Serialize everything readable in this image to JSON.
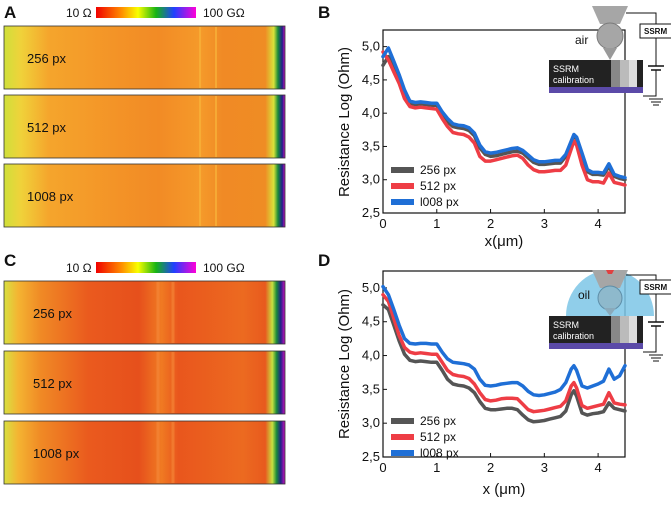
{
  "panels": {
    "A": {
      "label": "A",
      "colorbar": {
        "min_label": "10 Ω",
        "max_label": "100 GΩ"
      },
      "images": [
        {
          "label": "256 px"
        },
        {
          "label": "512 px"
        },
        {
          "label": "1008 px"
        }
      ]
    },
    "C": {
      "label": "C",
      "colorbar": {
        "min_label": "10 Ω",
        "max_label": "100 GΩ"
      },
      "images": [
        {
          "label": "256 px"
        },
        {
          "label": "512 px"
        },
        {
          "label": "1008 px"
        }
      ]
    }
  },
  "colors": {
    "s256": "#555555",
    "s512": "#ee3d45",
    "s1008": "#1f6fd6",
    "substrate": "#5b4aa8"
  },
  "chart_data": [
    {
      "panel": "B",
      "type": "line",
      "xlabel": "x(μm)",
      "ylabel": "Resistance Log (Ohm)",
      "xlim": [
        0,
        4.5
      ],
      "ylim": [
        2.5,
        5.25
      ],
      "xticks": [
        "0",
        "1",
        "2",
        "3",
        "4"
      ],
      "yticks": [
        "2,5",
        "3,0",
        "3,5",
        "4,0",
        "4,5",
        "5,0"
      ],
      "legend_position": "bottom-left",
      "inset": {
        "medium": "air",
        "ssrm_label": "SSRM",
        "calibration_label": [
          "SSRM",
          "calibration"
        ]
      },
      "x": [
        0,
        0.1,
        0.2,
        0.3,
        0.4,
        0.5,
        0.6,
        0.7,
        0.8,
        0.9,
        1.0,
        1.1,
        1.2,
        1.3,
        1.4,
        1.5,
        1.6,
        1.7,
        1.8,
        1.9,
        2.0,
        2.1,
        2.2,
        2.3,
        2.4,
        2.5,
        2.6,
        2.7,
        2.8,
        2.9,
        3.0,
        3.1,
        3.2,
        3.3,
        3.4,
        3.5,
        3.55,
        3.6,
        3.7,
        3.8,
        3.9,
        4.0,
        4.1,
        4.2,
        4.3,
        4.4,
        4.5
      ],
      "series": [
        {
          "name": "256 px",
          "color": "#555555",
          "values": [
            4.72,
            4.85,
            4.72,
            4.55,
            4.3,
            4.15,
            4.13,
            4.14,
            4.13,
            4.12,
            4.12,
            3.98,
            3.87,
            3.8,
            3.78,
            3.77,
            3.74,
            3.66,
            3.48,
            3.38,
            3.35,
            3.36,
            3.38,
            3.4,
            3.42,
            3.43,
            3.4,
            3.33,
            3.26,
            3.23,
            3.23,
            3.24,
            3.25,
            3.25,
            3.35,
            3.55,
            3.65,
            3.62,
            3.38,
            3.12,
            3.08,
            3.08,
            3.07,
            3.2,
            3.05,
            3.02,
            3.0
          ]
        },
        {
          "name": "512 px",
          "color": "#ee3d45",
          "values": [
            4.92,
            4.8,
            4.62,
            4.45,
            4.22,
            4.1,
            4.08,
            4.09,
            4.08,
            4.07,
            4.06,
            3.92,
            3.8,
            3.71,
            3.69,
            3.68,
            3.64,
            3.55,
            3.35,
            3.28,
            3.28,
            3.3,
            3.32,
            3.34,
            3.36,
            3.37,
            3.32,
            3.22,
            3.15,
            3.12,
            3.12,
            3.13,
            3.14,
            3.14,
            3.22,
            3.46,
            3.58,
            3.52,
            3.22,
            3.0,
            2.97,
            2.97,
            2.95,
            3.1,
            2.96,
            2.94,
            2.92
          ]
        },
        {
          "name": "l008 px",
          "color": "#1f6fd6",
          "values": [
            4.85,
            4.98,
            4.78,
            4.58,
            4.35,
            4.18,
            4.16,
            4.17,
            4.16,
            4.15,
            4.15,
            4.02,
            3.92,
            3.84,
            3.82,
            3.81,
            3.78,
            3.7,
            3.52,
            3.42,
            3.4,
            3.41,
            3.43,
            3.45,
            3.47,
            3.48,
            3.44,
            3.37,
            3.3,
            3.27,
            3.27,
            3.28,
            3.29,
            3.29,
            3.38,
            3.58,
            3.68,
            3.64,
            3.4,
            3.15,
            3.11,
            3.11,
            3.1,
            3.24,
            3.08,
            3.05,
            3.03
          ]
        }
      ]
    },
    {
      "panel": "D",
      "type": "line",
      "xlabel": "x (μm)",
      "ylabel": "Resistance Log (Ohm)",
      "xlim": [
        0,
        4.5
      ],
      "ylim": [
        2.5,
        5.25
      ],
      "xticks": [
        "0",
        "1",
        "2",
        "3",
        "4"
      ],
      "yticks": [
        "2,5",
        "3,0",
        "3,5",
        "4,0",
        "4,5",
        "5,0"
      ],
      "legend_position": "bottom-left",
      "inset": {
        "medium": "oil",
        "ssrm_label": "SSRM",
        "calibration_label": [
          "SSRM",
          "calibration"
        ]
      },
      "x": [
        0,
        0.1,
        0.2,
        0.3,
        0.4,
        0.5,
        0.6,
        0.7,
        0.8,
        0.9,
        1.0,
        1.1,
        1.2,
        1.3,
        1.4,
        1.5,
        1.6,
        1.7,
        1.8,
        1.9,
        2.0,
        2.1,
        2.2,
        2.3,
        2.4,
        2.5,
        2.6,
        2.7,
        2.8,
        2.9,
        3.0,
        3.1,
        3.2,
        3.3,
        3.4,
        3.5,
        3.55,
        3.6,
        3.7,
        3.8,
        3.9,
        4.0,
        4.1,
        4.2,
        4.3,
        4.4,
        4.5
      ],
      "series": [
        {
          "name": "256 px",
          "color": "#555555",
          "values": [
            4.75,
            4.68,
            4.45,
            4.22,
            4.02,
            3.93,
            3.91,
            3.92,
            3.91,
            3.9,
            3.9,
            3.78,
            3.65,
            3.58,
            3.56,
            3.55,
            3.52,
            3.45,
            3.32,
            3.22,
            3.2,
            3.2,
            3.21,
            3.22,
            3.22,
            3.2,
            3.12,
            3.05,
            3.02,
            3.03,
            3.04,
            3.06,
            3.08,
            3.1,
            3.18,
            3.42,
            3.48,
            3.4,
            3.15,
            3.12,
            3.14,
            3.15,
            3.17,
            3.3,
            3.22,
            3.2,
            3.18
          ]
        },
        {
          "name": "512 px",
          "color": "#ee3d45",
          "values": [
            4.9,
            4.8,
            4.55,
            4.3,
            4.12,
            4.05,
            4.03,
            4.04,
            4.03,
            4.02,
            4.02,
            3.9,
            3.78,
            3.72,
            3.7,
            3.69,
            3.66,
            3.58,
            3.45,
            3.35,
            3.33,
            3.34,
            3.36,
            3.37,
            3.37,
            3.36,
            3.28,
            3.2,
            3.17,
            3.18,
            3.19,
            3.21,
            3.23,
            3.25,
            3.33,
            3.55,
            3.6,
            3.52,
            3.26,
            3.22,
            3.24,
            3.26,
            3.28,
            3.45,
            3.3,
            3.28,
            3.27
          ]
        },
        {
          "name": "l008 px",
          "color": "#1f6fd6",
          "values": [
            5.02,
            4.9,
            4.68,
            4.45,
            4.25,
            4.18,
            4.17,
            4.18,
            4.18,
            4.17,
            4.17,
            4.05,
            3.95,
            3.9,
            3.89,
            3.88,
            3.86,
            3.8,
            3.65,
            3.56,
            3.55,
            3.56,
            3.58,
            3.59,
            3.6,
            3.6,
            3.55,
            3.47,
            3.42,
            3.41,
            3.42,
            3.44,
            3.46,
            3.5,
            3.6,
            3.8,
            3.85,
            3.78,
            3.55,
            3.52,
            3.55,
            3.58,
            3.62,
            3.8,
            3.65,
            3.7,
            3.85
          ]
        }
      ]
    }
  ]
}
